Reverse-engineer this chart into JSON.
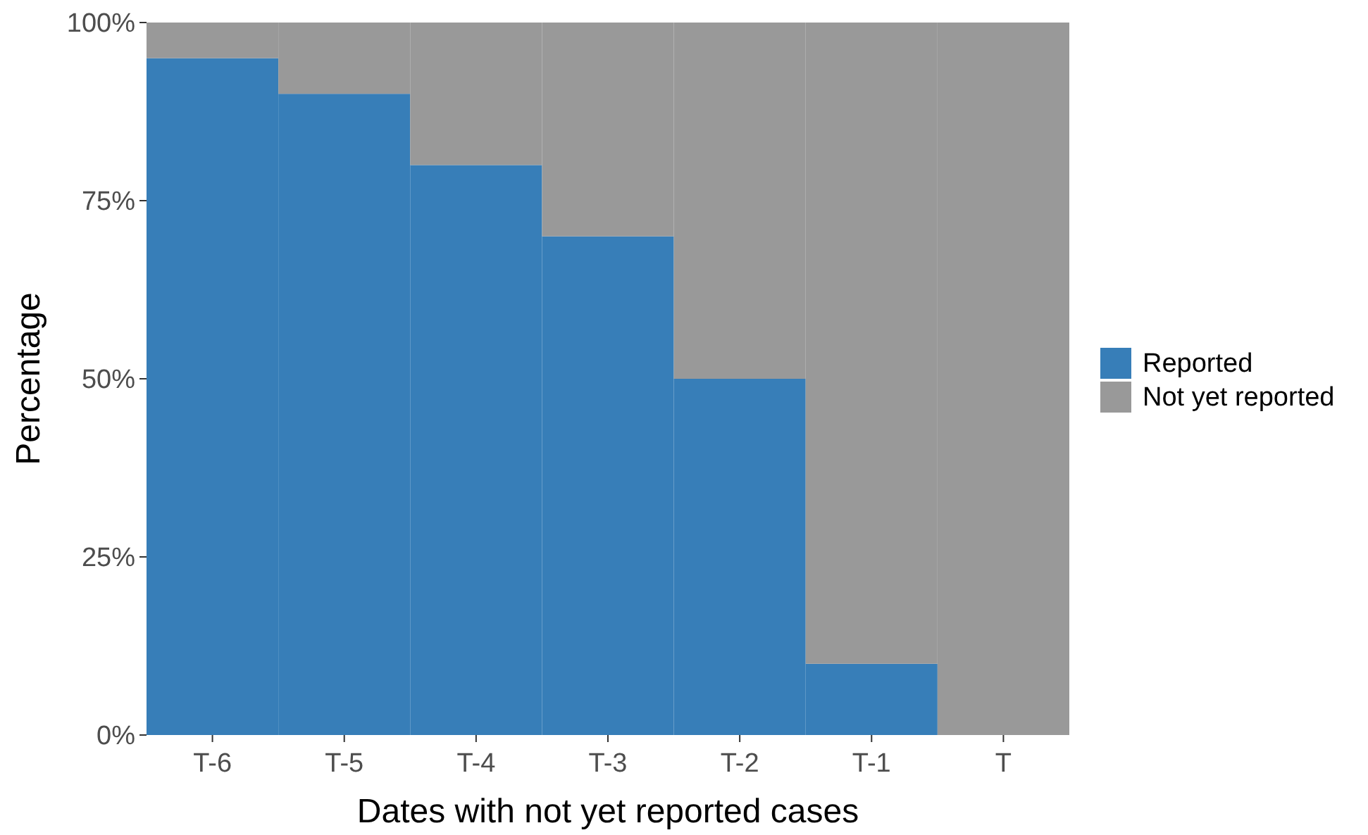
{
  "chart_data": {
    "type": "bar",
    "stacked": true,
    "xlabel": "Dates with not yet reported cases",
    "ylabel": "Percentage",
    "categories": [
      "T-6",
      "T-5",
      "T-4",
      "T-3",
      "T-2",
      "T-1",
      "T"
    ],
    "series": [
      {
        "name": "Reported",
        "color": "#377eb8",
        "values": [
          95,
          90,
          80,
          70,
          50,
          10,
          0
        ]
      },
      {
        "name": "Not yet reported",
        "color": "#999999",
        "values": [
          5,
          10,
          20,
          30,
          50,
          90,
          100
        ]
      }
    ],
    "ylim": [
      0,
      100
    ],
    "yticks": [
      {
        "value": 0,
        "label": "0%"
      },
      {
        "value": 25,
        "label": "25%"
      },
      {
        "value": 50,
        "label": "50%"
      },
      {
        "value": 75,
        "label": "75%"
      },
      {
        "value": 100,
        "label": "100%"
      }
    ],
    "legend": "right"
  }
}
